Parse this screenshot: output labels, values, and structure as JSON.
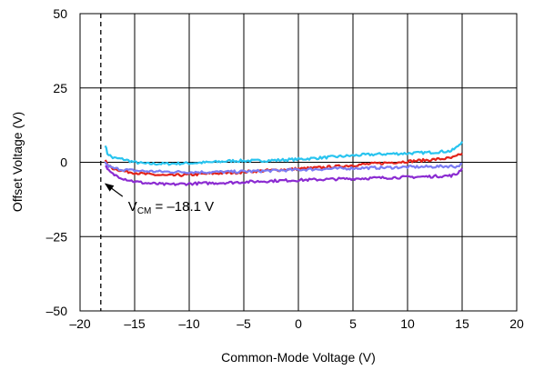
{
  "chart_data": {
    "type": "line",
    "xlabel": "Common-Mode Voltage (V)",
    "ylabel": "Offset Voltage (V)",
    "xlim": [
      -20,
      20
    ],
    "ylim": [
      -50,
      50
    ],
    "xticks": [
      -20,
      -15,
      -10,
      -5,
      0,
      5,
      10,
      15,
      20
    ],
    "yticks": [
      -50,
      -25,
      0,
      25,
      50
    ],
    "xtick_labels": [
      "–20",
      "–15",
      "–10",
      "–5",
      "0",
      "5",
      "10",
      "15",
      "20"
    ],
    "ytick_labels": [
      "–50",
      "–25",
      "0",
      "25",
      "50"
    ],
    "grid": true,
    "legend": "none",
    "series": [
      {
        "color": "#29c4ef",
        "x": [
          -17.7,
          -17.5,
          -17,
          -16,
          -15,
          -14,
          -12,
          -10,
          -8,
          -6,
          -4,
          -2,
          0,
          2,
          4,
          6,
          8,
          10,
          12,
          14,
          14.5,
          15
        ],
        "y": [
          6,
          3,
          1.5,
          1,
          0,
          -0.5,
          -0.5,
          -0.3,
          0,
          0.5,
          0.5,
          0.7,
          1,
          1.5,
          2,
          2.5,
          2.8,
          3,
          3.3,
          3.8,
          5,
          7
        ]
      },
      {
        "color": "#e2231a",
        "x": [
          -17.7,
          -17.5,
          -17,
          -16,
          -15,
          -14,
          -12,
          -10,
          -8,
          -6,
          -4,
          -2,
          0,
          2,
          4,
          6,
          8,
          10,
          12,
          14,
          14.5,
          15
        ],
        "y": [
          1,
          -1,
          -2,
          -3,
          -3.5,
          -4,
          -4.5,
          -4.2,
          -3.8,
          -3.5,
          -3,
          -2.6,
          -2.2,
          -1.8,
          -1.3,
          -0.7,
          -0.2,
          0.3,
          0.8,
          1.4,
          2,
          3
        ]
      },
      {
        "color": "#7b7cf4",
        "x": [
          -17.7,
          -17.5,
          -17,
          -16,
          -15,
          -14,
          -12,
          -10,
          -8,
          -6,
          -4,
          -2,
          0,
          2,
          4,
          6,
          8,
          10,
          12,
          14,
          14.5,
          15
        ],
        "y": [
          0,
          -1,
          -2,
          -2.5,
          -2.8,
          -3,
          -3.2,
          -3.3,
          -3.3,
          -3.2,
          -3,
          -2.8,
          -2.5,
          -2.3,
          -2.1,
          -1.9,
          -1.8,
          -1.6,
          -1.5,
          -1.3,
          -1.5,
          -0.5
        ]
      },
      {
        "color": "#8b2bd1",
        "x": [
          -17.7,
          -17.5,
          -17,
          -16,
          -15,
          -14,
          -12,
          -10,
          -8,
          -6,
          -4,
          -2,
          0,
          2,
          4,
          6,
          8,
          10,
          12,
          14,
          14.5,
          15
        ],
        "y": [
          -1,
          -2.5,
          -4,
          -5.5,
          -6.5,
          -7,
          -7.5,
          -7.2,
          -7,
          -6.8,
          -6.5,
          -6.2,
          -6,
          -5.8,
          -5.6,
          -5.4,
          -5.2,
          -5,
          -4.8,
          -4.5,
          -4,
          -2
        ]
      }
    ],
    "reference_line": {
      "x": -18.1,
      "style": "dashed",
      "color": "#000000"
    },
    "annotation": {
      "prefix": "V",
      "subscript": "CM",
      "text": " = –18.1 V",
      "arrow_to": [
        -18.1,
        -6
      ]
    }
  }
}
